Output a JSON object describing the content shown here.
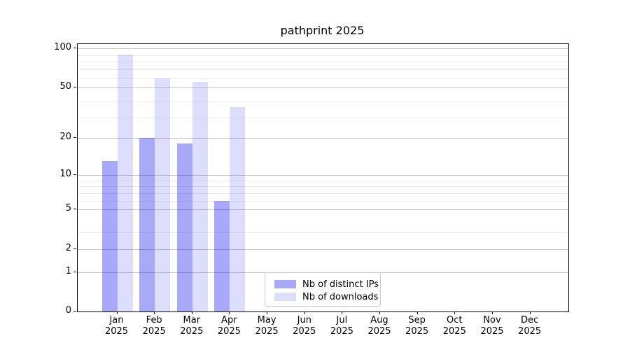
{
  "title": "pathprint 2025",
  "year_label": "2025",
  "legend": {
    "entries": [
      {
        "label": "Nb of distinct IPs",
        "color": "rgba(0,0,235,0.34)"
      },
      {
        "label": "Nb of downloads",
        "color": "rgba(0,0,235,0.135)"
      }
    ]
  },
  "chart_data": {
    "type": "bar",
    "title": "pathprint 2025",
    "categories": [
      "Jan",
      "Feb",
      "Mar",
      "Apr",
      "May",
      "Jun",
      "Jul",
      "Aug",
      "Sep",
      "Oct",
      "Nov",
      "Dec"
    ],
    "category_year": "2025",
    "series": [
      {
        "name": "Nb of distinct IPs",
        "color": "rgba(0,0,235,0.34)",
        "values": [
          13,
          20,
          18,
          6,
          0,
          0,
          0,
          0,
          0,
          0,
          0,
          0
        ]
      },
      {
        "name": "Nb of downloads",
        "color": "rgba(0,0,235,0.135)",
        "values": [
          90,
          59,
          55,
          35,
          0,
          0,
          0,
          0,
          0,
          0,
          0,
          0
        ]
      }
    ],
    "xlabel": "",
    "ylabel": "",
    "yticks": [
      0,
      1,
      2,
      5,
      10,
      20,
      50,
      100
    ],
    "ylim": [
      0,
      108
    ],
    "yscale": "log10(value+1)",
    "grid": true,
    "legend_position": "lower center",
    "grid_minor_values": [
      3,
      6,
      7,
      8,
      9,
      29,
      39,
      59,
      69,
      79,
      89
    ],
    "colors": {
      "axis": "#000000",
      "grid_major": "#c9c9c9",
      "grid_minor": "#ededed",
      "legend_border": "#cccccc"
    }
  }
}
